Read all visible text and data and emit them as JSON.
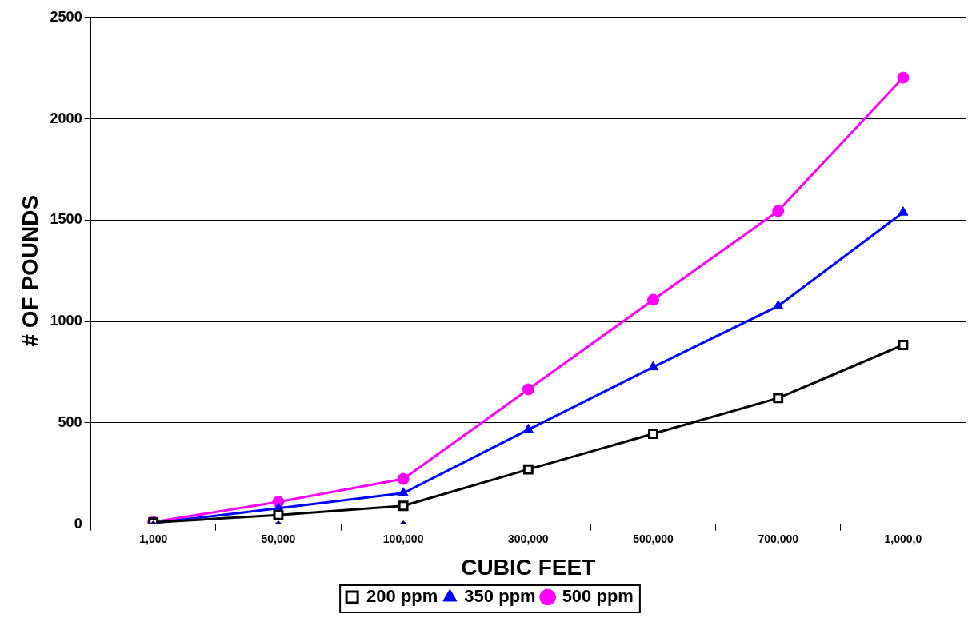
{
  "chart_data": {
    "type": "line",
    "xlabel": "CUBIC FEET",
    "ylabel": "# OF POUNDS",
    "categories": [
      "1,000",
      "50,000",
      "100,000",
      "300,000",
      "500,000",
      "700,000",
      "1,000,0"
    ],
    "ylim": [
      0,
      2500
    ],
    "yticks": [
      0,
      500,
      1000,
      1500,
      2000,
      2500
    ],
    "grid": "y",
    "legend": "bottom",
    "line_style": "solid",
    "series": [
      {
        "name": "200 ppm",
        "color": "#000000",
        "marker": "square",
        "values": [
          8,
          45,
          90,
          270,
          446,
          622,
          884
        ]
      },
      {
        "name": "350 ppm",
        "color": "#0000ff",
        "marker": "triangle",
        "values": [
          5,
          78,
          153,
          466,
          775,
          1076,
          1538
        ]
      },
      {
        "name": "500 ppm",
        "color": "#ff00ff",
        "marker": "circle",
        "values": [
          10,
          110,
          223,
          665,
          1107,
          1545,
          2203
        ]
      },
      {
        "type": "scatter",
        "color": "#000080",
        "marker": "diamond",
        "x": [
          "1,000",
          "50,000",
          "100,000"
        ],
        "values": [
          0,
          0,
          0
        ]
      }
    ]
  }
}
